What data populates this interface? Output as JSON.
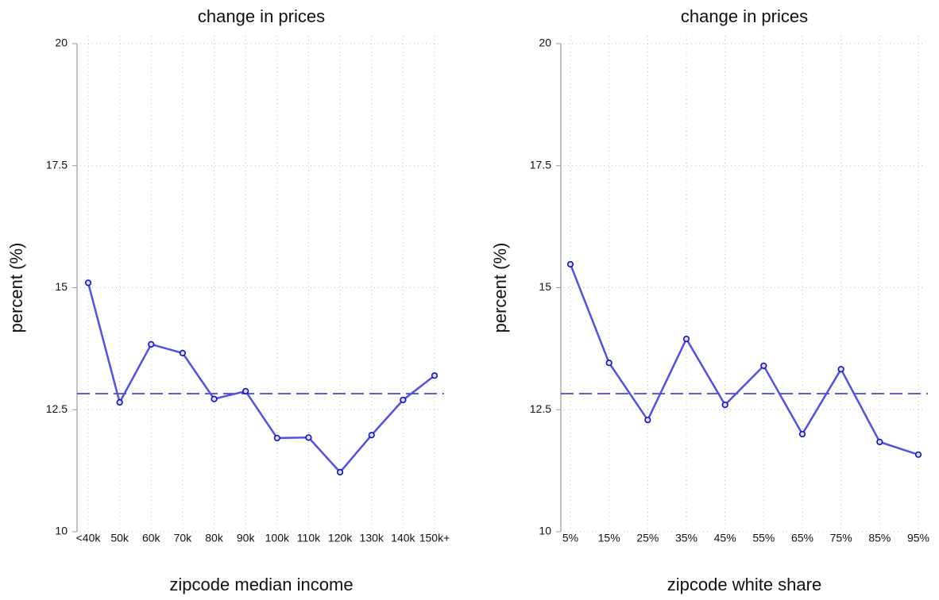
{
  "chart_data": [
    {
      "type": "line",
      "title": "change in prices",
      "xlabel": "zipcode median income",
      "ylabel": "percent (%)",
      "categories": [
        "<40k",
        "50k",
        "60k",
        "70k",
        "80k",
        "90k",
        "100k",
        "110k",
        "120k",
        "130k",
        "140k",
        "150k+"
      ],
      "values": [
        15.1,
        12.65,
        13.84,
        13.66,
        12.72,
        12.88,
        11.92,
        11.93,
        11.22,
        11.98,
        12.7,
        13.2
      ],
      "color": "#5050e8",
      "hline": 12.83,
      "ylim": [
        10,
        20
      ],
      "yticks": [
        10,
        12.5,
        15,
        17.5,
        20
      ],
      "grid": true
    },
    {
      "type": "line",
      "title": "change in prices",
      "xlabel": "zipcode white share",
      "ylabel": "percent (%)",
      "categories": [
        "5%",
        "15%",
        "25%",
        "35%",
        "45%",
        "55%",
        "65%",
        "75%",
        "85%",
        "95%"
      ],
      "values": [
        15.48,
        13.46,
        12.29,
        13.95,
        12.6,
        13.4,
        12.0,
        13.33,
        11.84,
        11.58
      ],
      "color": "#5050e8",
      "hline": 12.83,
      "ylim": [
        10,
        20
      ],
      "yticks": [
        10,
        12.5,
        15,
        17.5,
        20
      ],
      "grid": true
    }
  ]
}
